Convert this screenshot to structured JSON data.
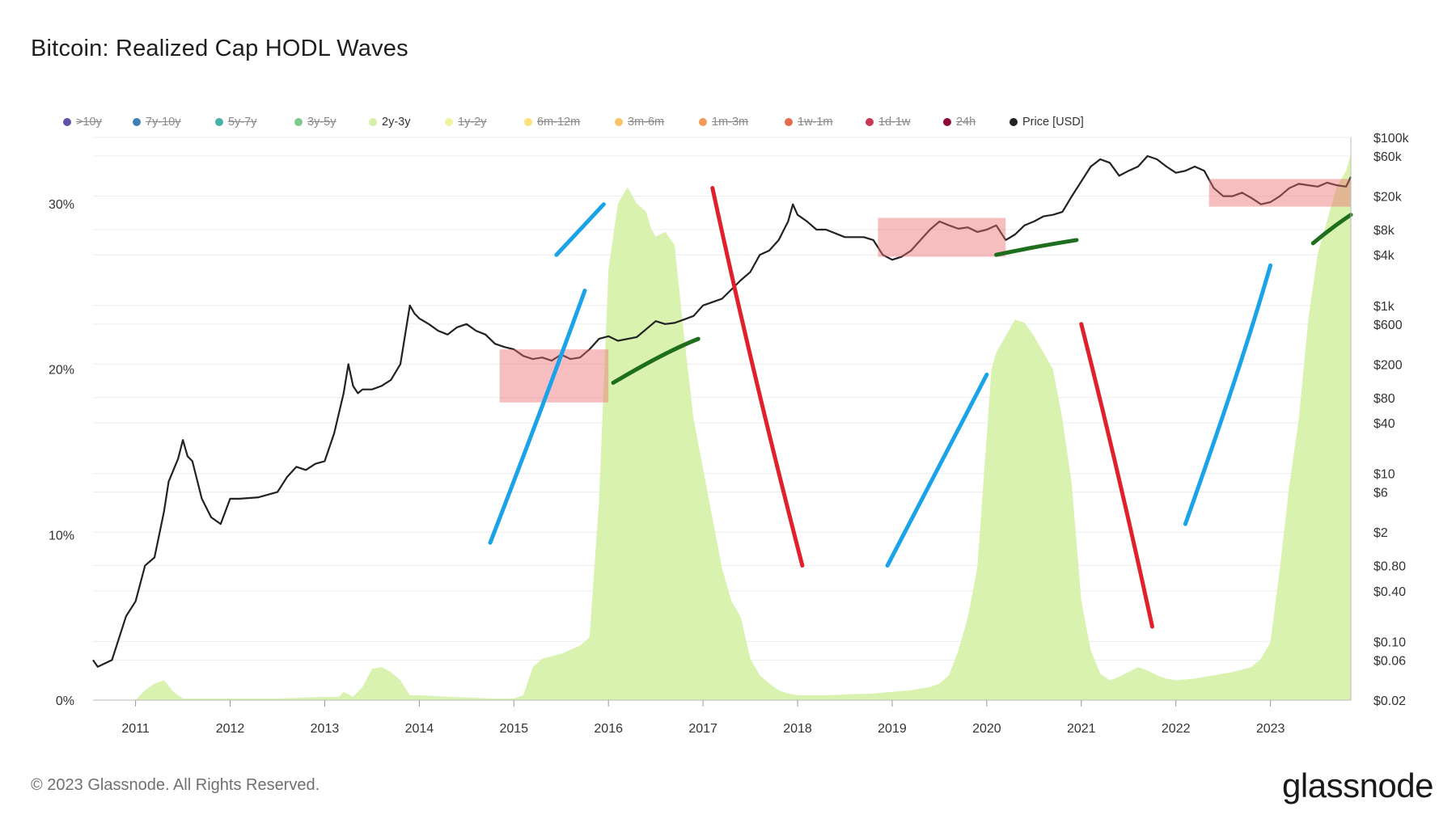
{
  "title": "Bitcoin: Realized Cap HODL Waves",
  "legend": [
    {
      "label": ">10y",
      "color": "#6353a8",
      "active": false
    },
    {
      "label": "7y-10y",
      "color": "#3f7fb4",
      "active": false
    },
    {
      "label": "5y-7y",
      "color": "#46b2a6",
      "active": false
    },
    {
      "label": "3y-5y",
      "color": "#7fc98d",
      "active": false
    },
    {
      "label": "2y-3y",
      "color": "#d4f0a6",
      "active": true
    },
    {
      "label": "1y-2y",
      "color": "#eef4a0",
      "active": false
    },
    {
      "label": "6m-12m",
      "color": "#fbe07c",
      "active": false
    },
    {
      "label": "3m-6m",
      "color": "#f9c36a",
      "active": false
    },
    {
      "label": "1m-3m",
      "color": "#f49a5a",
      "active": false
    },
    {
      "label": "1w-1m",
      "color": "#e56b4e",
      "active": false
    },
    {
      "label": "1d-1w",
      "color": "#c8394f",
      "active": false
    },
    {
      "label": "24h",
      "color": "#8e0c3c",
      "active": false
    },
    {
      "label": "Price [USD]",
      "color": "#222222",
      "active": true
    }
  ],
  "footer": "© 2023 Glassnode. All Rights Reserved.",
  "brand": "glassnode",
  "chart_data": {
    "type": "area",
    "title": "Bitcoin: Realized Cap HODL Waves",
    "x_ticks": [
      "2011",
      "2012",
      "2013",
      "2014",
      "2015",
      "2016",
      "2017",
      "2018",
      "2019",
      "2020",
      "2021",
      "2022",
      "2023"
    ],
    "x_range": [
      2010.55,
      2023.85
    ],
    "y_left_ticks": [
      "0%",
      "10%",
      "20%",
      "30%"
    ],
    "y_left_range": [
      0,
      34
    ],
    "y_right_scale": "log",
    "y_right_ticks": [
      "$100k",
      "$60k",
      "$20k",
      "$8k",
      "$4k",
      "$1k",
      "$600",
      "$200",
      "$80",
      "$40",
      "$10",
      "$6",
      "$2",
      "$0.80",
      "$0.40",
      "$0.10",
      "$0.06",
      "$0.02"
    ],
    "y_right_range": [
      0.02,
      100000
    ],
    "series": [
      {
        "name": "2y-3y",
        "color": "#d9f2b0",
        "axis": "left",
        "x": [
          2010.55,
          2010.9,
          2011.0,
          2011.1,
          2011.2,
          2011.3,
          2011.4,
          2011.5,
          2011.8,
          2012.5,
          2013.0,
          2013.15,
          2013.2,
          2013.3,
          2013.4,
          2013.5,
          2013.6,
          2013.7,
          2013.8,
          2013.9,
          2014.0,
          2014.3,
          2014.8,
          2015.0,
          2015.1,
          2015.2,
          2015.3,
          2015.5,
          2015.7,
          2015.8,
          2015.9,
          2016.0,
          2016.1,
          2016.2,
          2016.3,
          2016.4,
          2016.45,
          2016.5,
          2016.6,
          2016.7,
          2016.8,
          2016.9,
          2017.0,
          2017.1,
          2017.2,
          2017.3,
          2017.4,
          2017.5,
          2017.6,
          2017.7,
          2017.8,
          2017.9,
          2018.0,
          2018.3,
          2018.8,
          2019.0,
          2019.2,
          2019.4,
          2019.5,
          2019.6,
          2019.7,
          2019.8,
          2019.9,
          2020.0,
          2020.05,
          2020.1,
          2020.2,
          2020.3,
          2020.4,
          2020.5,
          2020.6,
          2020.7,
          2020.8,
          2020.9,
          2021.0,
          2021.1,
          2021.2,
          2021.3,
          2021.4,
          2021.5,
          2021.6,
          2021.7,
          2021.8,
          2021.9,
          2022.0,
          2022.2,
          2022.4,
          2022.6,
          2022.8,
          2022.9,
          2023.0,
          2023.1,
          2023.2,
          2023.3,
          2023.4,
          2023.5,
          2023.6,
          2023.7,
          2023.8,
          2023.85
        ],
        "values": [
          0,
          0,
          0,
          0.6,
          1.0,
          1.2,
          0.5,
          0.1,
          0.1,
          0.1,
          0.2,
          0.2,
          0.5,
          0.2,
          0.8,
          1.9,
          2.0,
          1.7,
          1.2,
          0.3,
          0.3,
          0.2,
          0.1,
          0.1,
          0.3,
          2.0,
          2.5,
          2.8,
          3.3,
          3.8,
          12,
          26,
          30,
          31,
          30,
          29.5,
          28.5,
          28,
          28.3,
          27.5,
          22,
          17,
          14,
          11,
          8,
          6,
          5,
          2.5,
          1.5,
          1.0,
          0.6,
          0.4,
          0.3,
          0.3,
          0.4,
          0.5,
          0.6,
          0.8,
          1.0,
          1.5,
          3.0,
          5.0,
          8.0,
          16,
          20,
          21,
          22,
          23,
          22.8,
          22,
          21,
          20,
          17,
          13,
          6,
          3,
          1.6,
          1.2,
          1.4,
          1.7,
          2.0,
          1.8,
          1.5,
          1.3,
          1.2,
          1.3,
          1.5,
          1.7,
          2.0,
          2.5,
          3.5,
          8.0,
          13,
          17,
          23,
          27,
          29,
          31,
          32,
          33
        ]
      },
      {
        "name": "Price [USD]",
        "color": "#222222",
        "axis": "right",
        "x": [
          2010.55,
          2010.6,
          2010.75,
          2010.9,
          2011.0,
          2011.1,
          2011.2,
          2011.3,
          2011.35,
          2011.45,
          2011.5,
          2011.55,
          2011.6,
          2011.7,
          2011.8,
          2011.9,
          2012.0,
          2012.1,
          2012.3,
          2012.5,
          2012.6,
          2012.7,
          2012.8,
          2012.9,
          2013.0,
          2013.1,
          2013.2,
          2013.25,
          2013.3,
          2013.35,
          2013.4,
          2013.5,
          2013.6,
          2013.7,
          2013.8,
          2013.9,
          2013.95,
          2014.0,
          2014.1,
          2014.2,
          2014.3,
          2014.4,
          2014.5,
          2014.6,
          2014.7,
          2014.8,
          2014.9,
          2015.0,
          2015.1,
          2015.2,
          2015.3,
          2015.4,
          2015.5,
          2015.6,
          2015.7,
          2015.8,
          2015.9,
          2016.0,
          2016.1,
          2016.3,
          2016.5,
          2016.6,
          2016.7,
          2016.8,
          2016.9,
          2017.0,
          2017.2,
          2017.4,
          2017.5,
          2017.6,
          2017.7,
          2017.8,
          2017.9,
          2017.95,
          2018.0,
          2018.1,
          2018.2,
          2018.3,
          2018.5,
          2018.7,
          2018.8,
          2018.9,
          2019.0,
          2019.1,
          2019.2,
          2019.3,
          2019.4,
          2019.5,
          2019.6,
          2019.7,
          2019.8,
          2019.9,
          2020.0,
          2020.1,
          2020.2,
          2020.3,
          2020.4,
          2020.5,
          2020.6,
          2020.7,
          2020.8,
          2020.9,
          2021.0,
          2021.1,
          2021.2,
          2021.3,
          2021.4,
          2021.5,
          2021.6,
          2021.7,
          2021.8,
          2021.9,
          2022.0,
          2022.1,
          2022.2,
          2022.3,
          2022.4,
          2022.5,
          2022.6,
          2022.7,
          2022.8,
          2022.9,
          2023.0,
          2023.1,
          2023.2,
          2023.3,
          2023.4,
          2023.5,
          2023.6,
          2023.7,
          2023.8,
          2023.85
        ],
        "values": [
          0.06,
          0.05,
          0.06,
          0.2,
          0.3,
          0.8,
          1.0,
          3.5,
          8,
          15,
          25,
          16,
          14,
          5,
          3,
          2.5,
          5,
          5,
          5.2,
          6,
          9,
          12,
          11,
          13,
          14,
          30,
          90,
          200,
          110,
          90,
          100,
          100,
          110,
          130,
          200,
          1000,
          800,
          700,
          600,
          500,
          450,
          550,
          600,
          500,
          450,
          350,
          320,
          300,
          250,
          230,
          240,
          220,
          260,
          230,
          240,
          300,
          400,
          430,
          380,
          420,
          650,
          600,
          620,
          680,
          750,
          1000,
          1200,
          2000,
          2500,
          4000,
          4500,
          6000,
          10000,
          16000,
          12000,
          10000,
          8000,
          8000,
          6500,
          6500,
          6000,
          4000,
          3500,
          3800,
          4500,
          6000,
          8000,
          10000,
          9000,
          8200,
          8500,
          7500,
          8000,
          9000,
          6000,
          7000,
          9000,
          10000,
          11500,
          12000,
          13000,
          20000,
          30000,
          45000,
          55000,
          50000,
          35000,
          40000,
          45000,
          60000,
          55000,
          45000,
          38000,
          40000,
          45000,
          40000,
          25000,
          20000,
          20000,
          22000,
          19000,
          16000,
          17000,
          20000,
          25000,
          28000,
          27000,
          26000,
          29000,
          27000,
          26000,
          34000
        ]
      }
    ]
  }
}
